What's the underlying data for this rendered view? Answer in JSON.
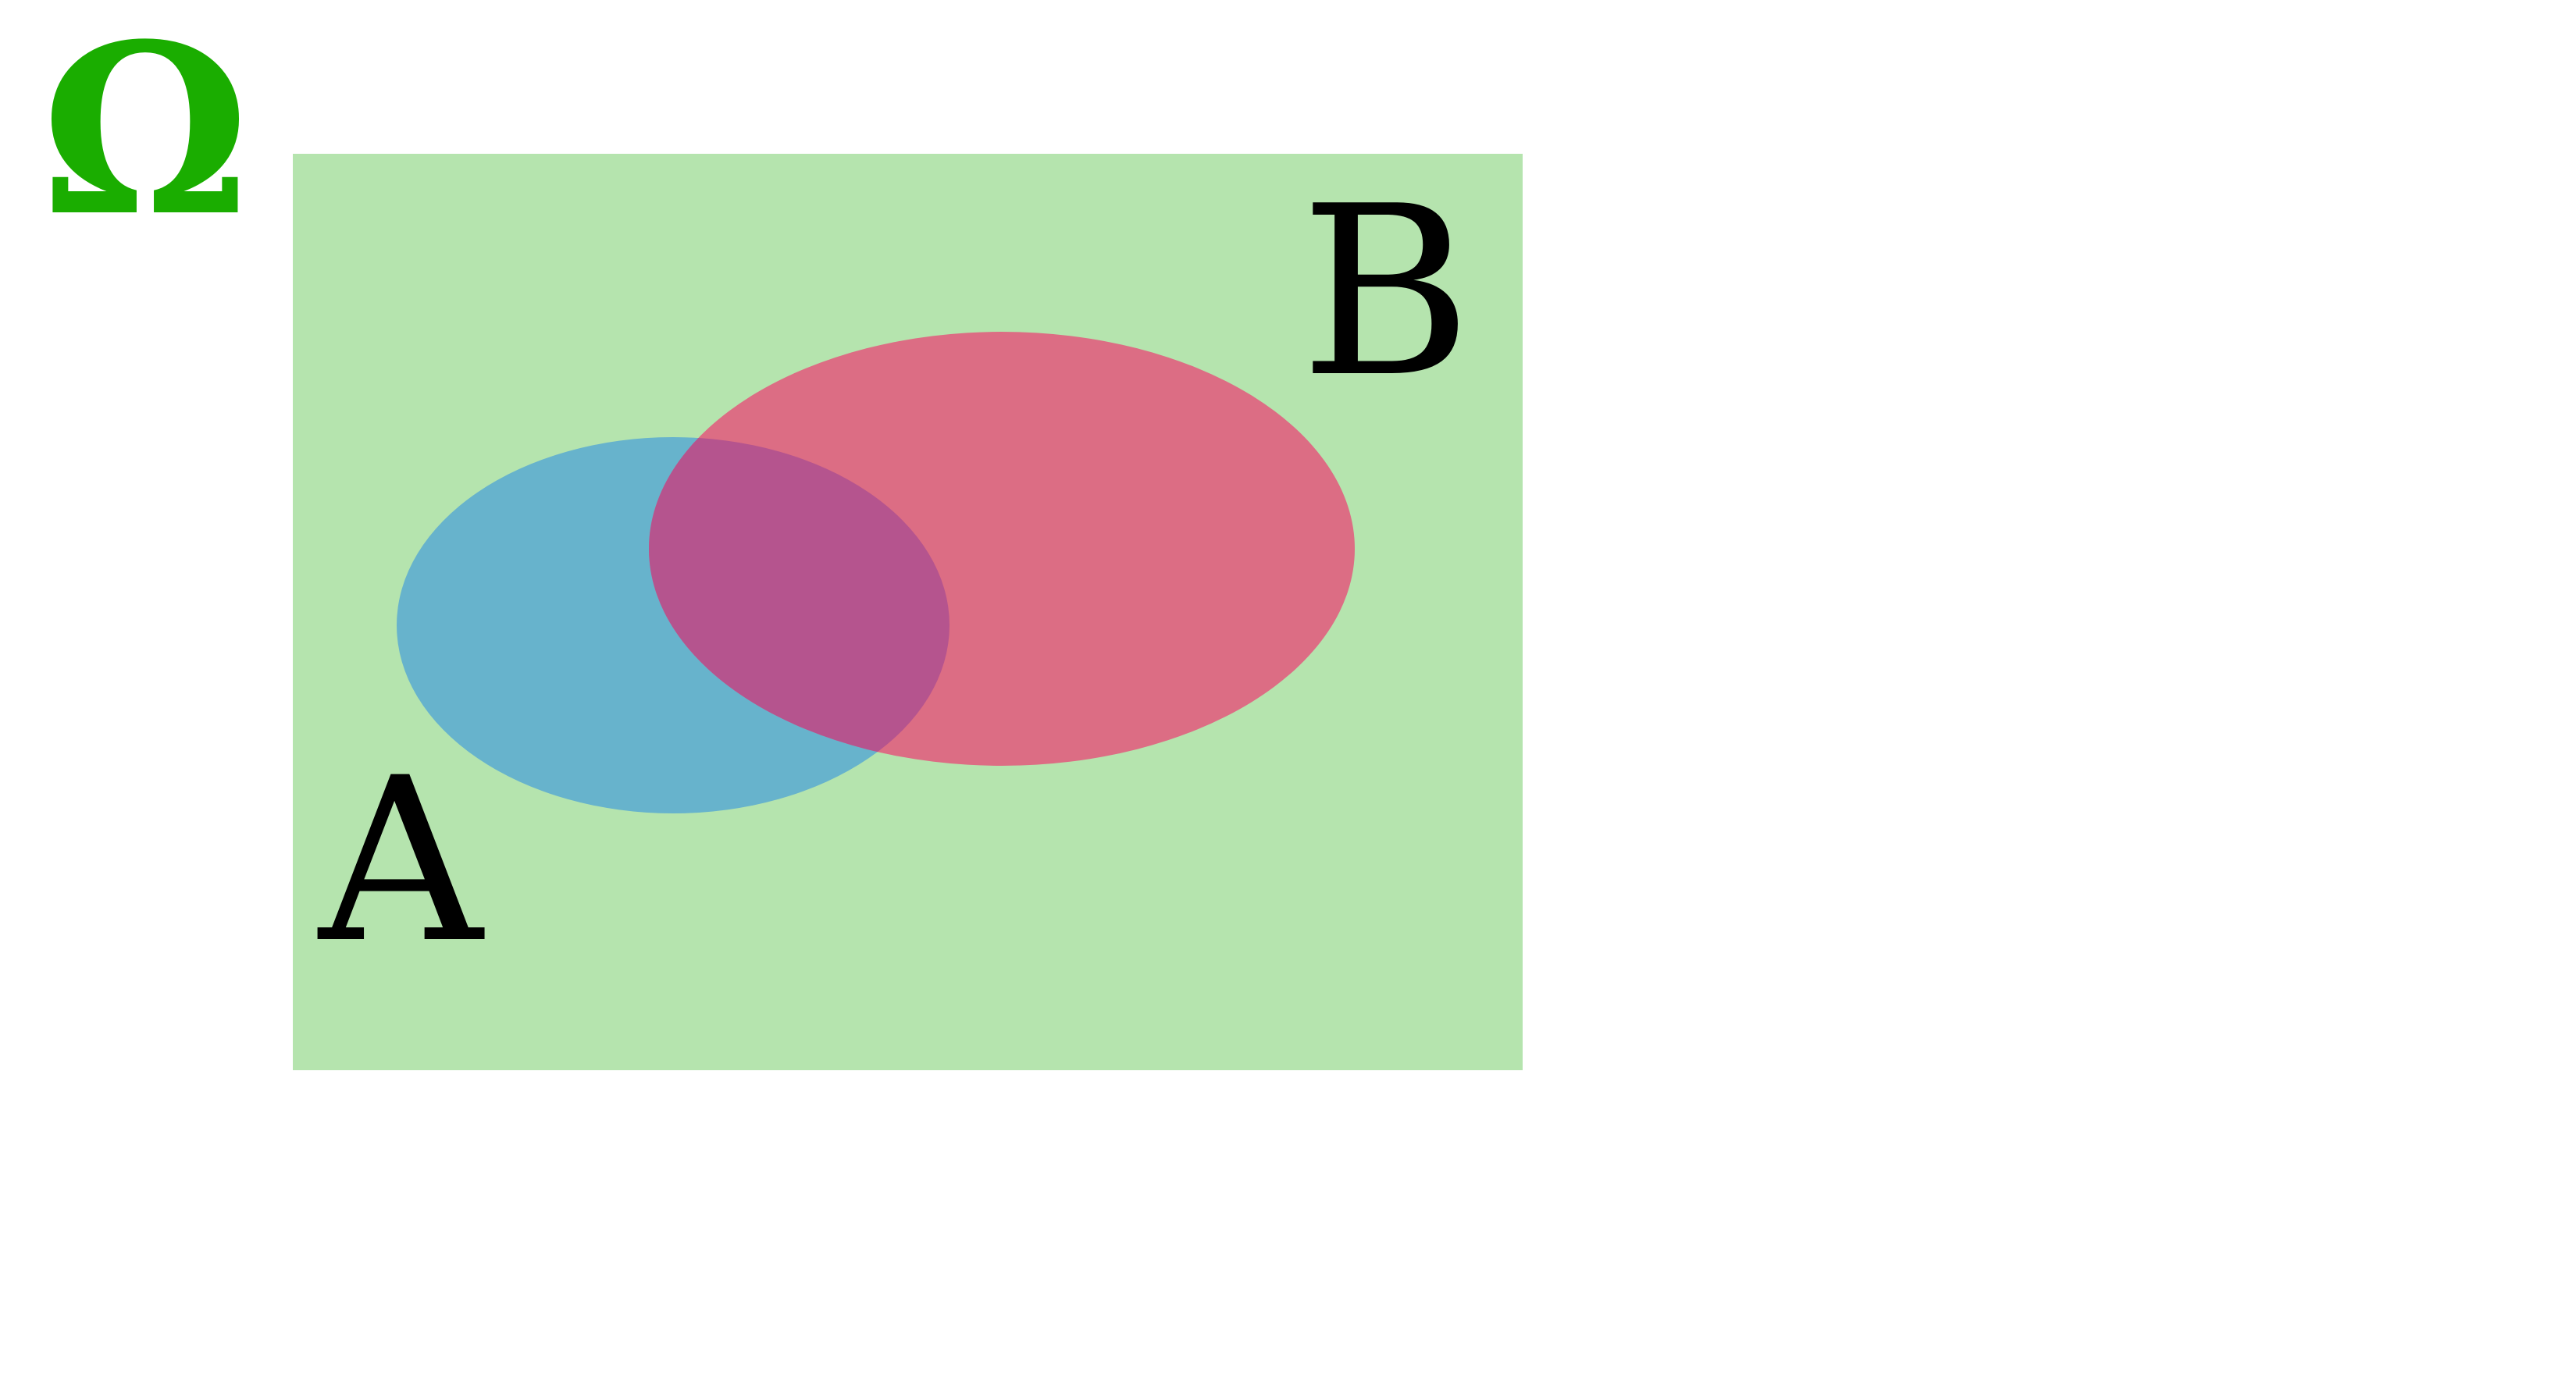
{
  "diagram": {
    "universe": {
      "label": "Ω",
      "label_color": "#1aad00",
      "fill": "#b5e4ae"
    },
    "set_a": {
      "label": "A",
      "fill": "#67b3cc"
    },
    "set_b": {
      "label": "B",
      "fill": "#dc6d84"
    },
    "intersection": {
      "fill": "#b5548e"
    },
    "label_color": "#000000"
  }
}
